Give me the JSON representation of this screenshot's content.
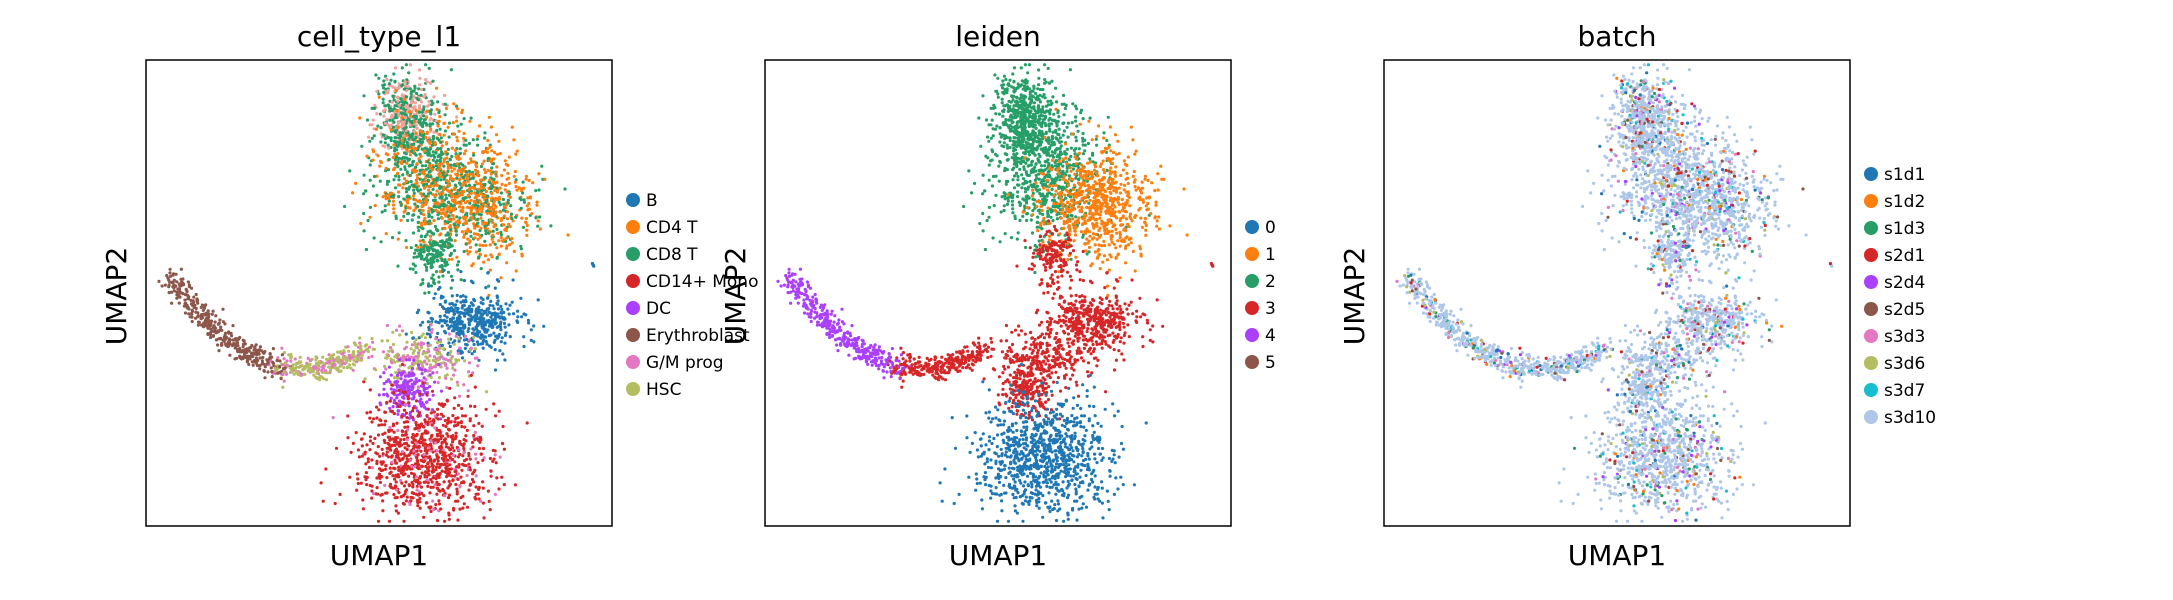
{
  "chart_data": [
    {
      "type": "scatter",
      "title": "cell_type_l1",
      "xlabel": "UMAP1",
      "ylabel": "UMAP2",
      "grid": false,
      "ticks": false,
      "legend_placement": "right",
      "legend": [
        {
          "name": "B",
          "color": "#1f77b4"
        },
        {
          "name": "CD4 T",
          "color": "#ff7f0e"
        },
        {
          "name": "CD8 T",
          "color": "#279e68"
        },
        {
          "name": "CD14+ Mono",
          "color": "#d62728"
        },
        {
          "name": "DC",
          "color": "#aa40fc"
        },
        {
          "name": "Erythroblast",
          "color": "#8c564b"
        },
        {
          "name": "G/M prog",
          "color": "#e377c2"
        },
        {
          "name": "HSC",
          "color": "#b5bd61"
        }
      ]
    },
    {
      "type": "scatter",
      "title": "leiden",
      "xlabel": "UMAP1",
      "ylabel": "UMAP2",
      "grid": false,
      "ticks": false,
      "legend_placement": "right",
      "legend": [
        {
          "name": "0",
          "color": "#1f77b4"
        },
        {
          "name": "1",
          "color": "#ff7f0e"
        },
        {
          "name": "2",
          "color": "#279e68"
        },
        {
          "name": "3",
          "color": "#d62728"
        },
        {
          "name": "4",
          "color": "#aa40fc"
        },
        {
          "name": "5",
          "color": "#8c564b"
        }
      ]
    },
    {
      "type": "scatter",
      "title": "batch",
      "xlabel": "UMAP1",
      "ylabel": "UMAP2",
      "grid": false,
      "ticks": false,
      "legend_placement": "right",
      "legend": [
        {
          "name": "s1d1",
          "color": "#1f77b4"
        },
        {
          "name": "s1d2",
          "color": "#ff7f0e"
        },
        {
          "name": "s1d3",
          "color": "#279e68"
        },
        {
          "name": "s2d1",
          "color": "#d62728"
        },
        {
          "name": "s2d4",
          "color": "#aa40fc"
        },
        {
          "name": "s2d5",
          "color": "#8c564b"
        },
        {
          "name": "s3d3",
          "color": "#e377c2"
        },
        {
          "name": "s3d6",
          "color": "#b5bd61"
        },
        {
          "name": "s3d7",
          "color": "#17becf"
        },
        {
          "name": "s3d10",
          "color": "#aec7e8"
        }
      ]
    }
  ]
}
